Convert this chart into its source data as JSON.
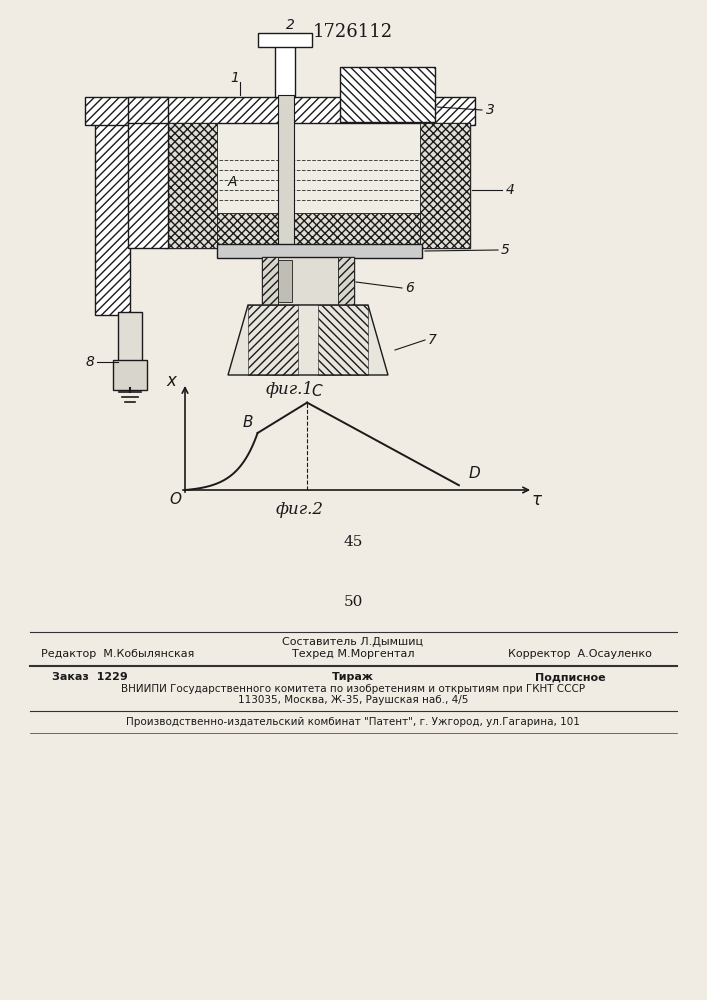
{
  "patent_number": "1726112",
  "fig1_caption": "фиг.1",
  "fig2_caption": "фиг.2",
  "graph_xlabel": "τ",
  "graph_ylabel": "x",
  "graph_origin_label": "O",
  "graph_B_label": "B",
  "graph_C_label": "C",
  "graph_D_label": "D",
  "number_45": "45",
  "number_50": "50",
  "line1_editor": "Редактор  М.Кобылянская",
  "line1_composer": "Составитель Л.Дымшиц",
  "line1_techred": "Техред М.Моргентал",
  "line1_corrector": "Корректор  А.Осауленко",
  "line2_order": "Заказ  1229",
  "line2_tiraj": "Тираж",
  "line2_podp": "Подписное",
  "line3": "ВНИИПИ Государственного комитета по изобретениям и открытиям при ГКНТ СССР",
  "line4": "113035, Москва, Ж-35, Раушская наб., 4/5",
  "line5": "Производственно-издательский комбинат \"Патент\", г. Ужгород, ул.Гагарина, 101",
  "bg_color": "#f0ece4"
}
